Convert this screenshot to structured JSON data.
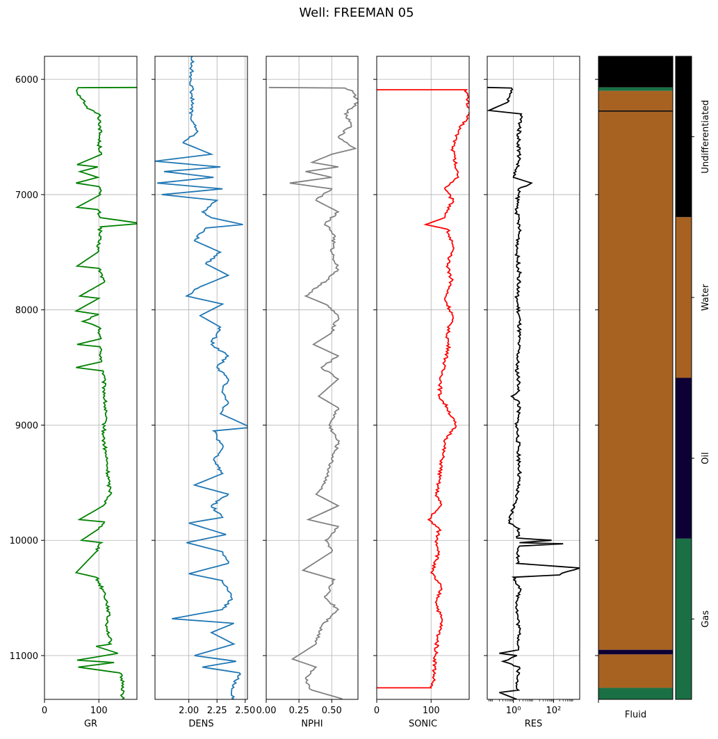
{
  "chart_data": {
    "type": "line",
    "title": "Well: FREEMAN 05",
    "y_axis": {
      "range": [
        5800,
        11380
      ],
      "ticks": [
        6000,
        7000,
        8000,
        9000,
        10000,
        11000
      ],
      "tick_labels": [
        "6000",
        "7000",
        "8000",
        "9000",
        "10000",
        "11000"
      ],
      "inverted": true
    },
    "tracks": [
      {
        "name": "GR",
        "xlabel": "GR",
        "xlim": [
          0,
          170
        ],
        "scale": "linear",
        "xticks": [
          0,
          100
        ],
        "xtick_labels": [
          "0",
          "100"
        ],
        "color": "#008000",
        "grid": true,
        "points": [
          [
            170,
            6070
          ],
          [
            62,
            6072
          ],
          [
            60,
            6110
          ],
          [
            72,
            6180
          ],
          [
            78,
            6250
          ],
          [
            100,
            6300
          ],
          [
            103,
            6420
          ],
          [
            100,
            6560
          ],
          [
            105,
            6650
          ],
          [
            60,
            6740
          ],
          [
            98,
            6760
          ],
          [
            65,
            6800
          ],
          [
            98,
            6850
          ],
          [
            58,
            6900
          ],
          [
            100,
            6930
          ],
          [
            103,
            7000
          ],
          [
            60,
            7110
          ],
          [
            98,
            7130
          ],
          [
            103,
            7200
          ],
          [
            178,
            7250
          ],
          [
            103,
            7280
          ],
          [
            100,
            7400
          ],
          [
            98,
            7500
          ],
          [
            60,
            7620
          ],
          [
            100,
            7640
          ],
          [
            110,
            7760
          ],
          [
            65,
            7880
          ],
          [
            100,
            7900
          ],
          [
            58,
            8010
          ],
          [
            100,
            8040
          ],
          [
            70,
            8100
          ],
          [
            100,
            8150
          ],
          [
            104,
            8250
          ],
          [
            60,
            8300
          ],
          [
            102,
            8320
          ],
          [
            105,
            8450
          ],
          [
            58,
            8500
          ],
          [
            108,
            8530
          ],
          [
            110,
            8700
          ],
          [
            112,
            8900
          ],
          [
            108,
            9100
          ],
          [
            114,
            9300
          ],
          [
            118,
            9500
          ],
          [
            122,
            9600
          ],
          [
            108,
            9700
          ],
          [
            64,
            9820
          ],
          [
            110,
            9840
          ],
          [
            100,
            9900
          ],
          [
            68,
            10000
          ],
          [
            105,
            10020
          ],
          [
            95,
            10100
          ],
          [
            58,
            10280
          ],
          [
            95,
            10320
          ],
          [
            110,
            10450
          ],
          [
            118,
            10600
          ],
          [
            115,
            10750
          ],
          [
            122,
            10900
          ],
          [
            95,
            10920
          ],
          [
            135,
            10980
          ],
          [
            60,
            11040
          ],
          [
            128,
            11060
          ],
          [
            62,
            11100
          ],
          [
            138,
            11150
          ],
          [
            145,
            11250
          ],
          [
            143,
            11380
          ]
        ]
      },
      {
        "name": "DENS",
        "xlabel": "DENS",
        "xlim": [
          1.7,
          2.52
        ],
        "scale": "linear",
        "xticks": [
          2.0,
          2.25,
          2.5
        ],
        "xtick_labels": [
          "2.00",
          "2.25",
          "2.50"
        ],
        "color": "#1f77b4",
        "grid": true,
        "points": [
          [
            2.03,
            5800
          ],
          [
            2.02,
            6000
          ],
          [
            2.03,
            6150
          ],
          [
            2.02,
            6350
          ],
          [
            2.08,
            6450
          ],
          [
            1.95,
            6550
          ],
          [
            2.2,
            6650
          ],
          [
            1.7,
            6710
          ],
          [
            2.28,
            6760
          ],
          [
            1.78,
            6800
          ],
          [
            2.22,
            6850
          ],
          [
            1.72,
            6900
          ],
          [
            2.3,
            6950
          ],
          [
            1.76,
            7000
          ],
          [
            2.25,
            7050
          ],
          [
            2.12,
            7150
          ],
          [
            2.2,
            7200
          ],
          [
            2.48,
            7260
          ],
          [
            2.15,
            7290
          ],
          [
            2.05,
            7400
          ],
          [
            2.28,
            7500
          ],
          [
            2.15,
            7600
          ],
          [
            2.35,
            7700
          ],
          [
            2.1,
            7800
          ],
          [
            1.98,
            7880
          ],
          [
            2.3,
            7950
          ],
          [
            2.1,
            8050
          ],
          [
            2.28,
            8150
          ],
          [
            2.2,
            8300
          ],
          [
            2.35,
            8400
          ],
          [
            2.25,
            8500
          ],
          [
            2.35,
            8600
          ],
          [
            2.3,
            8700
          ],
          [
            2.35,
            8800
          ],
          [
            2.28,
            8900
          ],
          [
            2.55,
            9020
          ],
          [
            2.22,
            9050
          ],
          [
            2.3,
            9200
          ],
          [
            2.22,
            9300
          ],
          [
            2.3,
            9420
          ],
          [
            2.05,
            9520
          ],
          [
            2.35,
            9600
          ],
          [
            2.2,
            9700
          ],
          [
            2.3,
            9800
          ],
          [
            2.0,
            9850
          ],
          [
            2.33,
            9950
          ],
          [
            1.98,
            10020
          ],
          [
            2.3,
            10100
          ],
          [
            2.35,
            10200
          ],
          [
            2.0,
            10290
          ],
          [
            2.3,
            10350
          ],
          [
            2.38,
            10500
          ],
          [
            2.3,
            10600
          ],
          [
            1.85,
            10680
          ],
          [
            2.4,
            10720
          ],
          [
            2.2,
            10800
          ],
          [
            2.4,
            10900
          ],
          [
            2.05,
            11000
          ],
          [
            2.42,
            11050
          ],
          [
            2.12,
            11100
          ],
          [
            2.45,
            11150
          ],
          [
            2.38,
            11300
          ],
          [
            2.4,
            11380
          ]
        ]
      },
      {
        "name": "NPHI",
        "xlabel": "NPHI",
        "xlim": [
          0,
          0.7
        ],
        "scale": "linear",
        "xticks": [
          0,
          0.25,
          0.5
        ],
        "xtick_labels": [
          "0.00",
          "0.25",
          "0.50"
        ],
        "color": "#808080",
        "grid": true,
        "points": [
          [
            0.02,
            6070
          ],
          [
            0.6,
            6075
          ],
          [
            0.66,
            6100
          ],
          [
            0.7,
            6200
          ],
          [
            0.6,
            6300
          ],
          [
            0.65,
            6400
          ],
          [
            0.55,
            6500
          ],
          [
            0.68,
            6600
          ],
          [
            0.5,
            6650
          ],
          [
            0.35,
            6720
          ],
          [
            0.55,
            6760
          ],
          [
            0.3,
            6800
          ],
          [
            0.5,
            6850
          ],
          [
            0.18,
            6900
          ],
          [
            0.5,
            6950
          ],
          [
            0.38,
            7050
          ],
          [
            0.55,
            7150
          ],
          [
            0.45,
            7250
          ],
          [
            0.52,
            7350
          ],
          [
            0.5,
            7500
          ],
          [
            0.55,
            7650
          ],
          [
            0.42,
            7780
          ],
          [
            0.3,
            7880
          ],
          [
            0.45,
            7950
          ],
          [
            0.55,
            8050
          ],
          [
            0.5,
            8200
          ],
          [
            0.36,
            8300
          ],
          [
            0.55,
            8400
          ],
          [
            0.42,
            8500
          ],
          [
            0.55,
            8600
          ],
          [
            0.4,
            8750
          ],
          [
            0.55,
            8850
          ],
          [
            0.48,
            9000
          ],
          [
            0.55,
            9150
          ],
          [
            0.5,
            9300
          ],
          [
            0.45,
            9500
          ],
          [
            0.38,
            9600
          ],
          [
            0.55,
            9700
          ],
          [
            0.32,
            9820
          ],
          [
            0.55,
            9880
          ],
          [
            0.45,
            10000
          ],
          [
            0.5,
            10100
          ],
          [
            0.28,
            10260
          ],
          [
            0.52,
            10340
          ],
          [
            0.45,
            10500
          ],
          [
            0.55,
            10600
          ],
          [
            0.42,
            10750
          ],
          [
            0.38,
            10900
          ],
          [
            0.2,
            11030
          ],
          [
            0.38,
            11100
          ],
          [
            0.3,
            11200
          ],
          [
            0.35,
            11300
          ],
          [
            0.58,
            11375
          ]
        ]
      },
      {
        "name": "SONIC",
        "xlabel": "SONIC",
        "xlim": [
          0,
          170
        ],
        "scale": "linear",
        "xticks": [
          0,
          100
        ],
        "xtick_labels": [
          "0",
          "100"
        ],
        "color": "#ff0000",
        "grid": true,
        "points": [
          [
            0,
            6090
          ],
          [
            165,
            6090
          ],
          [
            170,
            6300
          ],
          [
            150,
            6450
          ],
          [
            140,
            6600
          ],
          [
            145,
            6750
          ],
          [
            150,
            6850
          ],
          [
            125,
            6950
          ],
          [
            140,
            7050
          ],
          [
            125,
            7200
          ],
          [
            90,
            7260
          ],
          [
            130,
            7300
          ],
          [
            140,
            7450
          ],
          [
            130,
            7600
          ],
          [
            138,
            7750
          ],
          [
            125,
            7900
          ],
          [
            140,
            8050
          ],
          [
            130,
            8200
          ],
          [
            132,
            8350
          ],
          [
            125,
            8450
          ],
          [
            120,
            8550
          ],
          [
            115,
            8750
          ],
          [
            130,
            8850
          ],
          [
            145,
            9000
          ],
          [
            125,
            9150
          ],
          [
            120,
            9300
          ],
          [
            115,
            9450
          ],
          [
            110,
            9600
          ],
          [
            118,
            9700
          ],
          [
            95,
            9820
          ],
          [
            115,
            9900
          ],
          [
            110,
            10000
          ],
          [
            115,
            10100
          ],
          [
            100,
            10280
          ],
          [
            118,
            10400
          ],
          [
            110,
            10550
          ],
          [
            120,
            10700
          ],
          [
            112,
            10850
          ],
          [
            108,
            11000
          ],
          [
            105,
            11200
          ],
          [
            100,
            11280
          ],
          [
            0,
            11280
          ]
        ]
      },
      {
        "name": "RES",
        "xlabel": "RES",
        "xlim": [
          0.05,
          2000
        ],
        "scale": "log",
        "xticks": [
          1,
          100
        ],
        "xtick_labels": [
          "10⁰",
          "10²"
        ],
        "color": "#000000",
        "grid": true,
        "points": [
          [
            0.05,
            6070
          ],
          [
            0.8,
            6075
          ],
          [
            0.5,
            6200
          ],
          [
            0.06,
            6270
          ],
          [
            2.5,
            6300
          ],
          [
            1.8,
            6500
          ],
          [
            2.0,
            6700
          ],
          [
            1.0,
            6850
          ],
          [
            8.0,
            6900
          ],
          [
            1.8,
            6950
          ],
          [
            1.5,
            7150
          ],
          [
            2.0,
            7300
          ],
          [
            1.5,
            7500
          ],
          [
            2.0,
            7700
          ],
          [
            1.5,
            7900
          ],
          [
            2.0,
            8100
          ],
          [
            1.8,
            8300
          ],
          [
            1.5,
            8500
          ],
          [
            2.0,
            8700
          ],
          [
            0.8,
            8750
          ],
          [
            2.0,
            8800
          ],
          [
            1.5,
            9000
          ],
          [
            1.8,
            9200
          ],
          [
            2.0,
            9400
          ],
          [
            1.5,
            9600
          ],
          [
            0.6,
            9850
          ],
          [
            2.0,
            9900
          ],
          [
            1.5,
            9980
          ],
          [
            80,
            10000
          ],
          [
            2.0,
            10020
          ],
          [
            300,
            10030
          ],
          [
            2.0,
            10050
          ],
          [
            1.5,
            10200
          ],
          [
            2000,
            10240
          ],
          [
            500,
            10270
          ],
          [
            200,
            10300
          ],
          [
            1.0,
            10320
          ],
          [
            2.0,
            10400
          ],
          [
            1.5,
            10600
          ],
          [
            2.0,
            10800
          ],
          [
            1.8,
            10950
          ],
          [
            0.2,
            10980
          ],
          [
            1.5,
            11000
          ],
          [
            0.3,
            11050
          ],
          [
            2.0,
            11100
          ],
          [
            1.5,
            11200
          ],
          [
            1.8,
            11300
          ],
          [
            0.2,
            11320
          ],
          [
            1.5,
            11380
          ]
        ]
      }
    ],
    "fluid_track": {
      "xlabel": "Fluid",
      "intervals": [
        {
          "top": 5800,
          "bottom": 6070,
          "fluid": "Undifferentiated",
          "color": "#000000"
        },
        {
          "top": 6070,
          "bottom": 6100,
          "fluid": "Gas",
          "color": "#1a7044"
        },
        {
          "top": 6100,
          "bottom": 6270,
          "fluid": "Water",
          "color": "#a76222"
        },
        {
          "top": 6270,
          "bottom": 6280,
          "fluid": "Undifferentiated",
          "color": "#000000"
        },
        {
          "top": 6280,
          "bottom": 10950,
          "fluid": "Water",
          "color": "#a76222"
        },
        {
          "top": 10950,
          "bottom": 10990,
          "fluid": "Oil",
          "color": "#0d0035"
        },
        {
          "top": 10990,
          "bottom": 11280,
          "fluid": "Water",
          "color": "#a76222"
        },
        {
          "top": 11280,
          "bottom": 11380,
          "fluid": "Gas",
          "color": "#1a7044"
        }
      ]
    },
    "legend": {
      "placement": "right",
      "entries": [
        {
          "label": "Gas",
          "color": "#1a7044"
        },
        {
          "label": "Oil",
          "color": "#0d0035"
        },
        {
          "label": "Water",
          "color": "#a76222"
        },
        {
          "label": "Undifferentiated",
          "color": "#000000"
        }
      ]
    }
  }
}
